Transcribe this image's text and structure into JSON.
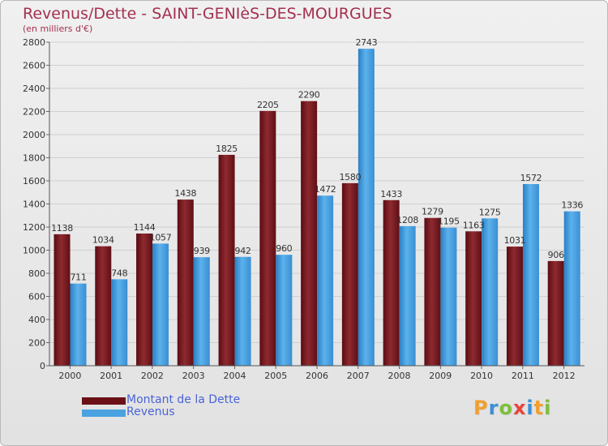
{
  "header": {
    "title": "Revenus/Dette - SAINT-GENIèS-DES-MOURGUES",
    "subtitle": "(en milliers d'€)"
  },
  "chart_data": {
    "type": "bar",
    "title": "Revenus/Dette - SAINT-GENIèS-DES-MOURGUES",
    "subtitle": "(en milliers d'€)",
    "xlabel": "",
    "ylabel": "",
    "categories": [
      "2000",
      "2001",
      "2002",
      "2003",
      "2004",
      "2005",
      "2006",
      "2007",
      "2008",
      "2009",
      "2010",
      "2011",
      "2012"
    ],
    "series": [
      {
        "name": "Montant de la Dette",
        "color": "#7a1a1f",
        "values": [
          1138,
          1034,
          1144,
          1438,
          1825,
          2205,
          2290,
          1580,
          1433,
          1279,
          1163,
          1031,
          906
        ]
      },
      {
        "name": "Revenus",
        "color": "#4aa3e0",
        "values": [
          711,
          748,
          1057,
          939,
          942,
          960,
          1472,
          2743,
          1208,
          1195,
          1275,
          1572,
          1336
        ]
      }
    ],
    "ylim": [
      0,
      2800
    ],
    "yticks": [
      0,
      200,
      400,
      600,
      800,
      1000,
      1200,
      1400,
      1600,
      1800,
      2000,
      2200,
      2400,
      2600,
      2800
    ],
    "grid": true,
    "legend": "bottom-left"
  },
  "logo": {
    "letters": [
      "P",
      "r",
      "o",
      "x",
      "i",
      "t",
      "i"
    ],
    "colors": [
      "#f0a030",
      "#3a8fd8",
      "#7cbf3a",
      "#e8443a",
      "#3a8fd8",
      "#f0a030",
      "#7cbf3a"
    ]
  }
}
